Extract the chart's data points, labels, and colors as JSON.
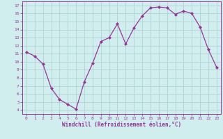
{
  "x": [
    0,
    1,
    2,
    3,
    4,
    5,
    6,
    7,
    8,
    9,
    10,
    11,
    12,
    13,
    14,
    15,
    16,
    17,
    18,
    19,
    20,
    21,
    22,
    23
  ],
  "y": [
    11.2,
    10.7,
    9.7,
    6.7,
    5.3,
    4.7,
    4.1,
    7.5,
    9.8,
    12.5,
    13.0,
    14.7,
    12.2,
    14.2,
    15.7,
    16.7,
    16.8,
    16.7,
    15.9,
    16.3,
    16.0,
    14.3,
    11.5,
    9.3
  ],
  "line_color": "#993399",
  "marker": "D",
  "marker_size": 2.0,
  "bg_color": "#d0eeee",
  "grid_color": "#aacccc",
  "xlabel": "Windchill (Refroidissement éolien,°C)",
  "xlabel_color": "#993399",
  "tick_color": "#993399",
  "ylim": [
    3.5,
    17.5
  ],
  "xlim": [
    -0.5,
    23.5
  ],
  "yticks": [
    4,
    5,
    6,
    7,
    8,
    9,
    10,
    11,
    12,
    13,
    14,
    15,
    16,
    17
  ],
  "xticks": [
    0,
    1,
    2,
    3,
    4,
    5,
    6,
    7,
    8,
    9,
    10,
    11,
    12,
    13,
    14,
    15,
    16,
    17,
    18,
    19,
    20,
    21,
    22,
    23
  ],
  "spine_color": "#993399",
  "title_color": "#993399",
  "line_width": 0.9
}
